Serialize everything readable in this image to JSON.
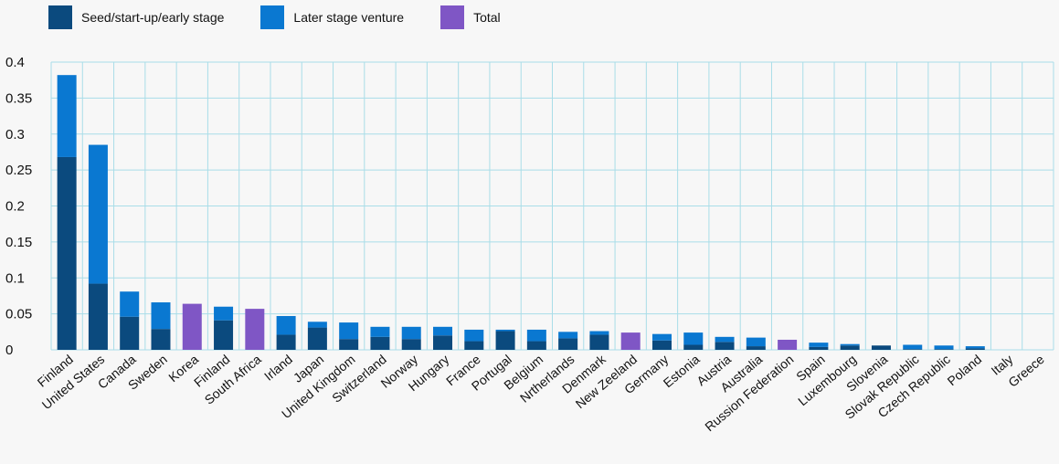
{
  "colors": {
    "seed": "#0b4a7e",
    "later": "#0a78d1",
    "total": "#7f56c5",
    "grid": "#a9dde8"
  },
  "legend": [
    {
      "label": "Seed/start-up/early stage",
      "color": "#0b4a7e"
    },
    {
      "label": "Later stage venture",
      "color": "#0a78d1"
    },
    {
      "label": "Total",
      "color": "#7f56c5"
    }
  ],
  "chart_data": {
    "type": "bar",
    "stacked": true,
    "ylim": [
      0,
      0.4
    ],
    "yticks": [
      "0",
      "0.05",
      "0.1",
      "0.15",
      "0.2",
      "0.25",
      "0.3",
      "0.35",
      "0.4"
    ],
    "grid": true,
    "legend_position": "top-left",
    "categories": [
      "Finland",
      "United States",
      "Canada",
      "Sweden",
      "Korea",
      "Finland",
      "South Africa",
      "Irland",
      "Japan",
      "United Kingdom",
      "Switzerland",
      "Norway",
      "Hungary",
      "France",
      "Portugal",
      "Belgium",
      "Nrtherlands",
      "Denmark",
      "New Zeeland",
      "Germany",
      "Estonia",
      "Austria",
      "Australia",
      "Russion Federation",
      "Spain",
      "Luxembourg",
      "Slovenia",
      "Slovak Republic",
      "Czech Republic",
      "Poland",
      "Italy",
      "Greece"
    ],
    "series": [
      {
        "name": "Seed/start-up/early stage",
        "color": "#0b4a7e",
        "values": [
          0.268,
          0.092,
          0.046,
          0.029,
          0,
          0.041,
          0,
          0.021,
          0.031,
          0.015,
          0.018,
          0.015,
          0.02,
          0.012,
          0.026,
          0.012,
          0.016,
          0.021,
          0,
          0.013,
          0.007,
          0.011,
          0.005,
          0,
          0.004,
          0.006,
          0.006,
          0.001,
          0.001,
          0.002,
          0,
          0
        ]
      },
      {
        "name": "Later stage venture",
        "color": "#0a78d1",
        "values": [
          0.114,
          0.193,
          0.035,
          0.037,
          0,
          0.019,
          0,
          0.026,
          0.008,
          0.023,
          0.014,
          0.017,
          0.012,
          0.016,
          0.002,
          0.016,
          0.009,
          0.005,
          0,
          0.009,
          0.017,
          0.007,
          0.012,
          0,
          0.006,
          0.002,
          0.0,
          0.006,
          0.005,
          0.003,
          0,
          0
        ]
      },
      {
        "name": "Total",
        "color": "#7f56c5",
        "values": [
          0,
          0,
          0,
          0,
          0.064,
          0,
          0.057,
          0,
          0,
          0,
          0,
          0,
          0,
          0,
          0,
          0,
          0,
          0,
          0.024,
          0,
          0,
          0,
          0,
          0.014,
          0,
          0,
          0,
          0,
          0,
          0,
          0,
          0
        ]
      }
    ]
  }
}
